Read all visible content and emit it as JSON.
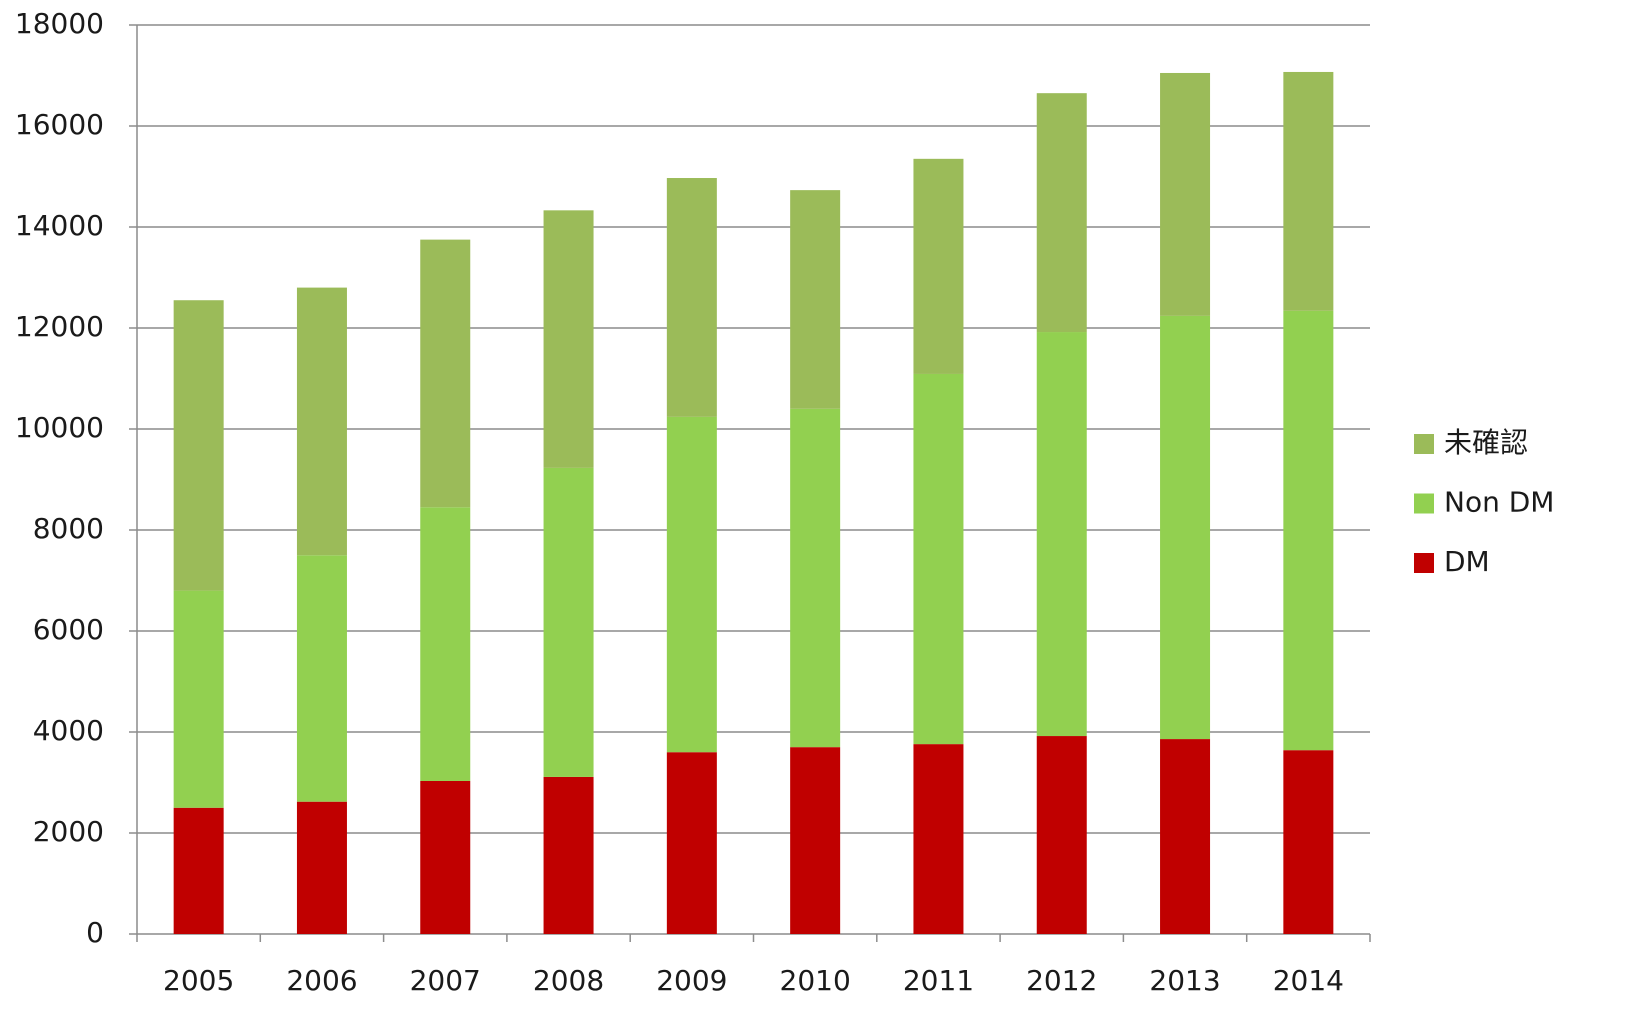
{
  "chart_data": {
    "type": "stacked_bar",
    "categories": [
      "2005",
      "2006",
      "2007",
      "2008",
      "2009",
      "2010",
      "2011",
      "2012",
      "2013",
      "2014"
    ],
    "series": [
      {
        "name": "DM",
        "color": "#c00000",
        "values": [
          2500,
          2620,
          3030,
          3110,
          3600,
          3700,
          3760,
          3920,
          3860,
          3640
        ]
      },
      {
        "name": "Non DM",
        "color": "#92d050",
        "values": [
          4300,
          4880,
          5420,
          6120,
          6640,
          6700,
          7330,
          8000,
          8380,
          8700
        ]
      },
      {
        "name": "未確認",
        "color": "#9bbb59",
        "values": [
          5750,
          5300,
          5300,
          5100,
          4730,
          4330,
          4260,
          4730,
          4810,
          4730
        ]
      }
    ],
    "ylim": [
      0,
      18000
    ],
    "yticks": [
      0,
      2000,
      4000,
      6000,
      8000,
      10000,
      12000,
      14000,
      16000,
      18000
    ],
    "grid": true,
    "legend": "right"
  }
}
